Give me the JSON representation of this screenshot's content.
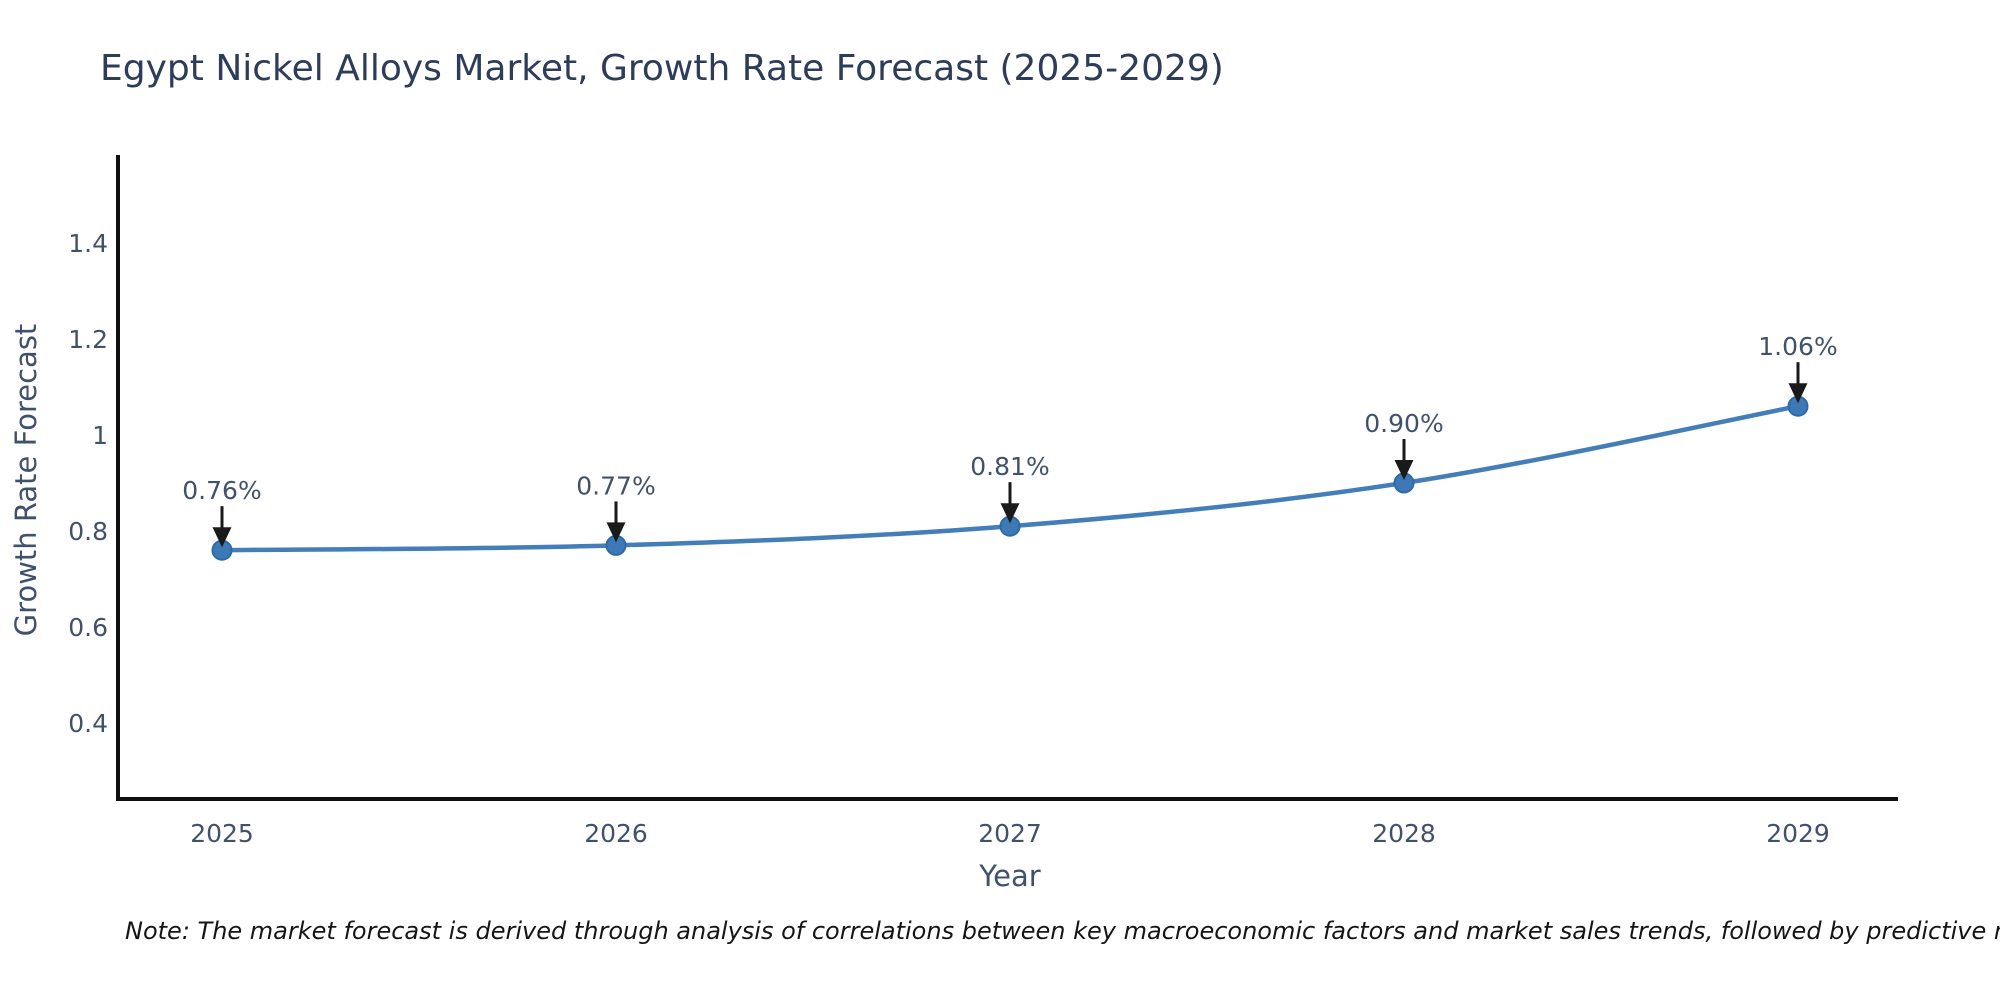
{
  "page": {
    "background": "#ffffff"
  },
  "chart_data": {
    "type": "line",
    "title": "Egypt Nickel Alloys Market, Growth Rate Forecast (2025-2029)",
    "xlabel": "Year",
    "ylabel": "Growth Rate Forecast",
    "categories": [
      "2025",
      "2026",
      "2027",
      "2028",
      "2029"
    ],
    "series": [
      {
        "name": "Growth Rate Forecast",
        "values": [
          0.76,
          0.77,
          0.81,
          0.9,
          1.06
        ],
        "point_labels": [
          "0.76%",
          "0.77%",
          "0.81%",
          "0.90%",
          "1.06%"
        ]
      }
    ],
    "y_ticks": {
      "labels": [
        "1.4",
        "1.2",
        "1",
        "0.8",
        "0.6",
        "0.4"
      ],
      "values": [
        1.4,
        1.2,
        1.0,
        0.8,
        0.6,
        0.4
      ]
    },
    "ylim": [
      0.24,
      1.59
    ],
    "grid": false,
    "legend": false,
    "line_shape": "spline",
    "colors": {
      "line": "#447eb9",
      "marker_fill": "#3c79b6",
      "marker_edge": "#2e6aa5",
      "axis_line": "#111111",
      "arrow": "#1a1a1a",
      "axis_text": "#42516b",
      "annotation_text": "#42516b",
      "title_text": "#2d3c58",
      "note_text": "#151515"
    },
    "note": "Note: The market forecast is derived through analysis of correlations between key macroeconomic factors and market sales trends, followed by predictive modeling to project future sales"
  }
}
